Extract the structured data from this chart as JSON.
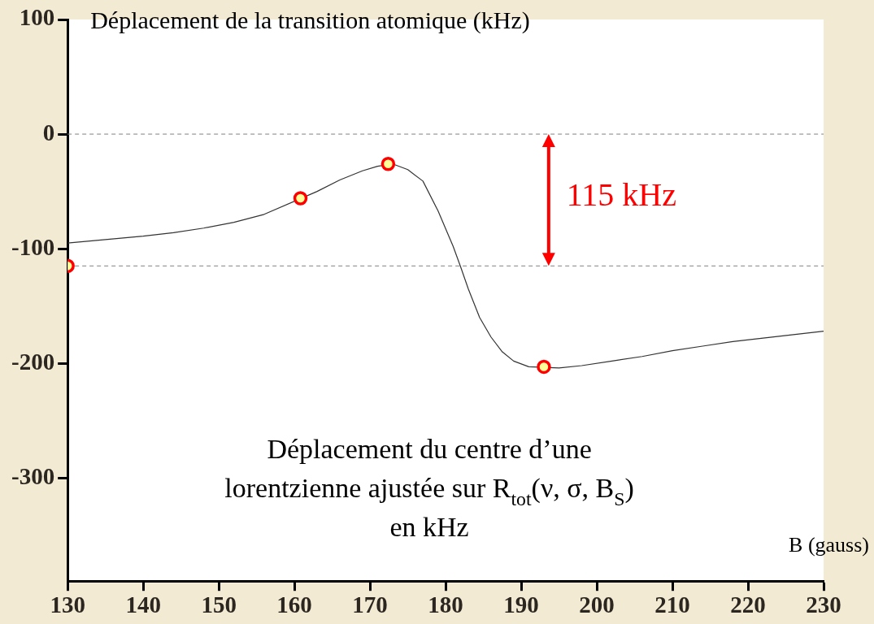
{
  "chart_data": {
    "type": "line",
    "ylabel": "Déplacement de la transition atomique (kHz)",
    "xlabel": "B (gauss)",
    "xlim": [
      130,
      230
    ],
    "xticks": [
      130,
      140,
      150,
      160,
      170,
      180,
      190,
      200,
      210,
      220,
      230
    ],
    "ylim": [
      -390,
      100
    ],
    "yticks": [
      100,
      0,
      -100,
      -200,
      -300
    ],
    "grid": false,
    "legend": false,
    "series": [
      {
        "color": "#333333",
        "marker": "none",
        "x": [
          130,
          135,
          140,
          144,
          148,
          152,
          156,
          163,
          166,
          169,
          171,
          173,
          175,
          177,
          179,
          181,
          182,
          183,
          184.5,
          186,
          187.5,
          189,
          191,
          195,
          198,
          202,
          206,
          210,
          214,
          218,
          222,
          226,
          230
        ],
        "values": [
          -95,
          -92,
          -89,
          -86,
          -82,
          -77,
          -70,
          -50,
          -40,
          -32,
          -28,
          -26,
          -31,
          -41,
          -67,
          -98,
          -116,
          -135,
          -160,
          -177,
          -190,
          -198,
          -203,
          -204,
          -202,
          -198,
          -194,
          -189,
          -185,
          -181,
          -178,
          -175,
          -172
        ]
      },
      {
        "type": "scatter",
        "color": "#ff0000",
        "marker": "circle",
        "x": [
          130,
          160.8,
          172.4,
          193
        ],
        "values": [
          -115,
          -56,
          -26,
          -203
        ]
      }
    ],
    "ref_lines": [
      {
        "axis": "y",
        "value": 0,
        "color": "#808080",
        "line_style": "dashed"
      },
      {
        "axis": "y",
        "value": -115,
        "color": "#808080",
        "line_style": "dashed"
      }
    ],
    "annotations": [
      "Déplacement du centre d’une\nlorentzienne ajustée sur R$_{tot}$(ν, σ, B$_{S}$)\nen kHz",
      "115 kHz"
    ]
  }
}
